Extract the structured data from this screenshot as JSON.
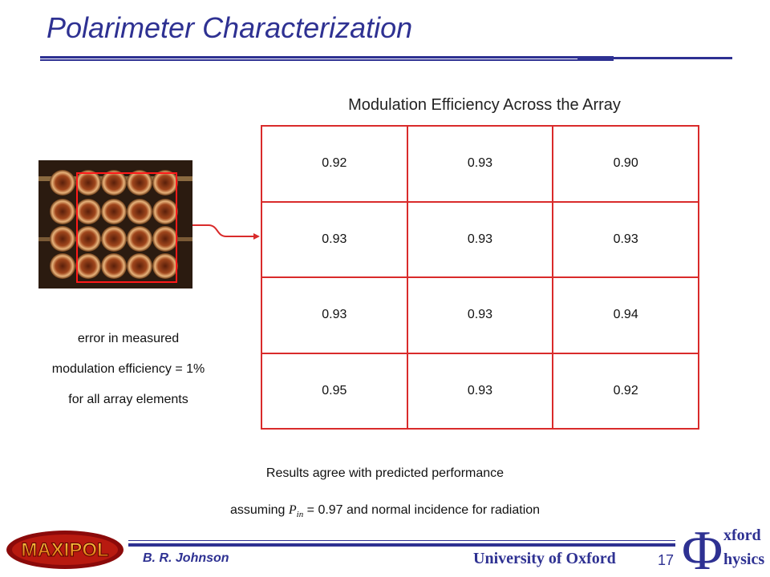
{
  "slide": {
    "title": "Polarimeter Characterization",
    "grid_title": "Modulation Efficiency Across the Array",
    "grid": [
      [
        "0.92",
        "0.93",
        "0.90"
      ],
      [
        "0.93",
        "0.93",
        "0.93"
      ],
      [
        "0.93",
        "0.93",
        "0.94"
      ],
      [
        "0.95",
        "0.93",
        "0.92"
      ]
    ],
    "note": [
      "error in measured",
      "modulation efficiency = 1%",
      "for all array elements"
    ],
    "results_line1": "Results agree with predicted performance",
    "results_line2_pre": "assuming ",
    "results_var": "P",
    "results_sub": "in",
    "results_line2_post": " = 0.97 and normal incidence for radiation"
  },
  "footer": {
    "author": "B. R. Johnson",
    "university": "University of Oxford",
    "page_number": "17",
    "logo_left_text": "MAXIPOL",
    "logo_right_symbol": "Φ",
    "logo_right_line1": "xford",
    "logo_right_line2": "hysics"
  },
  "colors": {
    "title": "#2e3192",
    "grid_border": "#d92b2b"
  }
}
